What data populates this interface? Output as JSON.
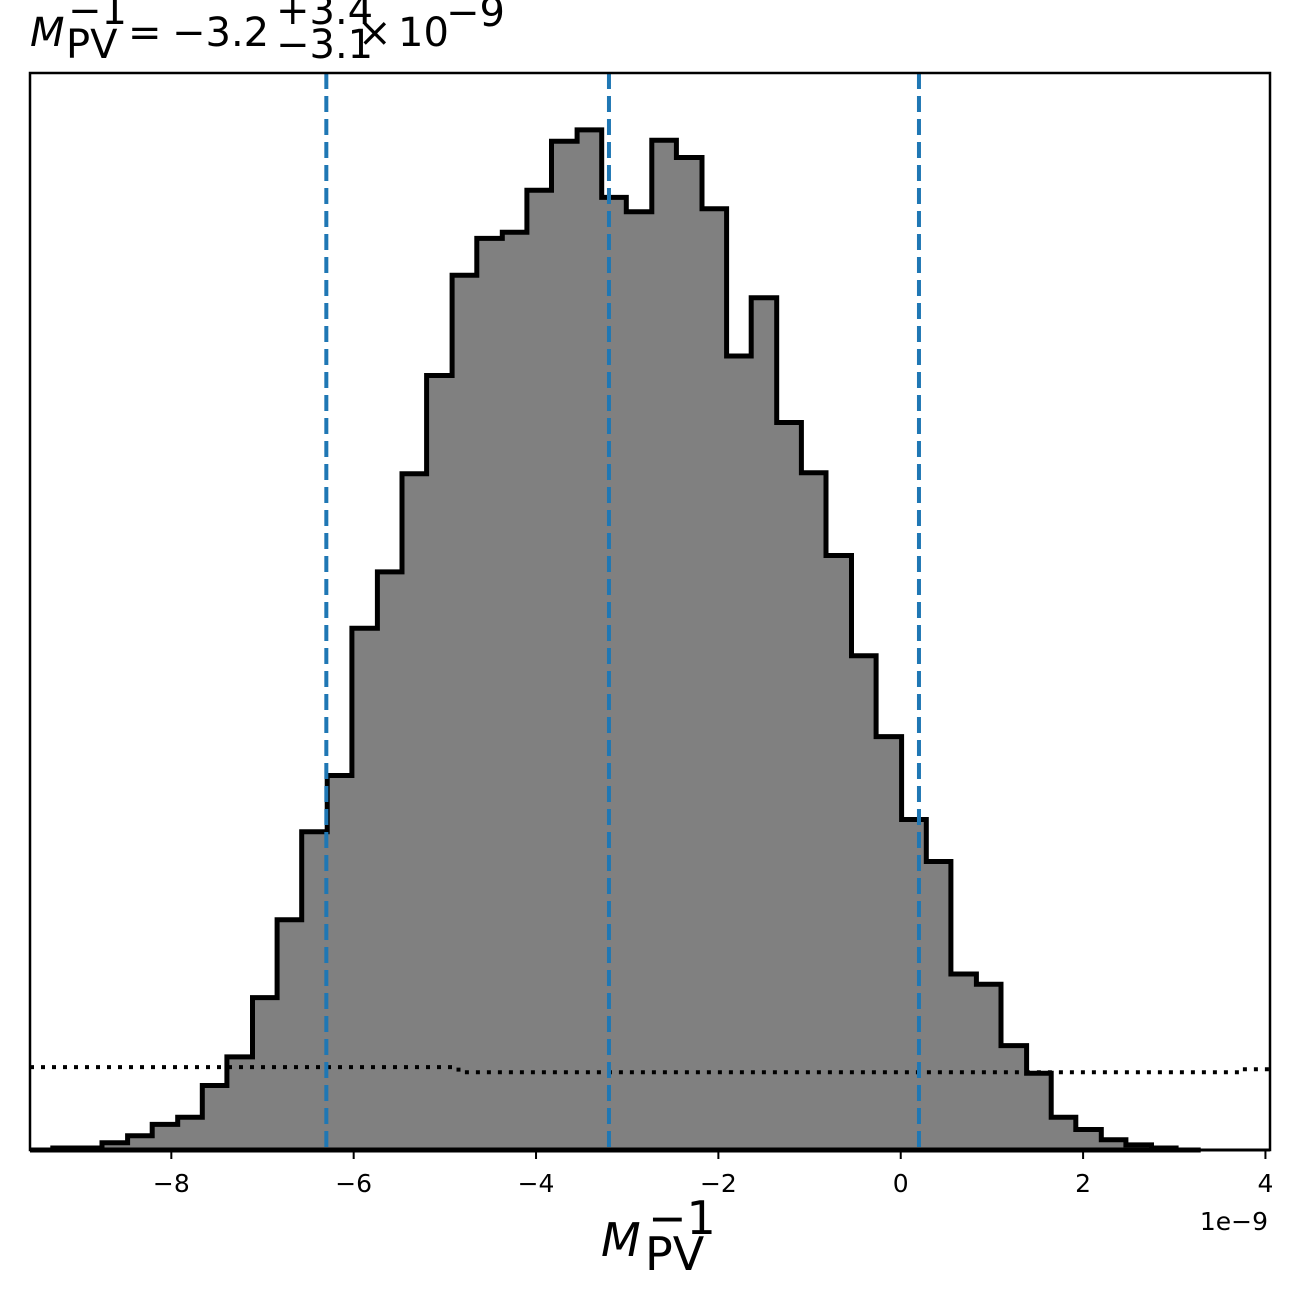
{
  "chart_data": {
    "type": "histogram",
    "title": {
      "symbol": "M",
      "subscript": "PV",
      "superscript": "−1",
      "equals": "=",
      "value": "−3.2",
      "err_plus": "+3.4",
      "err_minus": "−3.1",
      "times": "×",
      "power_base": "10",
      "power_exp": "−9"
    },
    "xlabel": {
      "symbol": "M",
      "subscript": "PV",
      "superscript": "−1"
    },
    "offset_text": "1e−9",
    "xlim": [
      -9.55,
      4.05
    ],
    "ylim": [
      0,
      1
    ],
    "x_ticks": [
      -8,
      -6,
      -4,
      -2,
      0,
      2,
      4
    ],
    "x_tick_labels": [
      "−8",
      "−6",
      "−4",
      "−2",
      "0",
      "2",
      "4"
    ],
    "y_ticks_shown": false,
    "bin_edges": [
      -9.55,
      -9.3,
      -9.03,
      -8.76,
      -8.48,
      -8.21,
      -7.93,
      -7.66,
      -7.39,
      -7.11,
      -6.84,
      -6.57,
      -6.29,
      -6.02,
      -5.74,
      -5.47,
      -5.2,
      -4.92,
      -4.65,
      -4.37,
      -4.1,
      -3.83,
      -3.55,
      -3.28,
      -3.01,
      -2.73,
      -2.46,
      -2.18,
      -1.91,
      -1.64,
      -1.36,
      -1.09,
      -0.82,
      -0.54,
      -0.27,
      0.01,
      0.28,
      0.55,
      0.83,
      1.1,
      1.38,
      1.65,
      1.92,
      2.2,
      2.47,
      2.75,
      3.02,
      3.29
    ],
    "histogram_values": [
      0.0,
      0.002,
      0.002,
      0.007,
      0.014,
      0.025,
      0.032,
      0.063,
      0.091,
      0.149,
      0.225,
      0.311,
      0.366,
      0.51,
      0.565,
      0.661,
      0.757,
      0.855,
      0.891,
      0.897,
      0.938,
      0.986,
      0.997,
      0.931,
      0.917,
      0.987,
      0.97,
      0.92,
      0.776,
      0.833,
      0.711,
      0.662,
      0.581,
      0.483,
      0.404,
      0.323,
      0.282,
      0.172,
      0.162,
      0.102,
      0.075,
      0.032,
      0.02,
      0.01,
      0.005,
      0.002,
      0.0
    ],
    "series": [
      {
        "name": "posterior",
        "style": "step-filled",
        "fill": "#808080",
        "edge": "#000000"
      },
      {
        "name": "prior",
        "style": "dotted",
        "color": "#000000"
      }
    ],
    "prior_line": {
      "x": [
        -9.55,
        -7.4,
        -4.85,
        -4.85,
        3.75,
        3.75,
        4.05
      ],
      "y": [
        0.081,
        0.081,
        0.081,
        0.076,
        0.076,
        0.079,
        0.079
      ]
    },
    "vlines": [
      {
        "x": -6.3,
        "label": "lower",
        "color": "#1f77b4"
      },
      {
        "x": -3.2,
        "label": "median",
        "color": "#1f77b4"
      },
      {
        "x": 0.2,
        "label": "upper",
        "color": "#1f77b4"
      }
    ],
    "grid": false,
    "legend": "none"
  }
}
